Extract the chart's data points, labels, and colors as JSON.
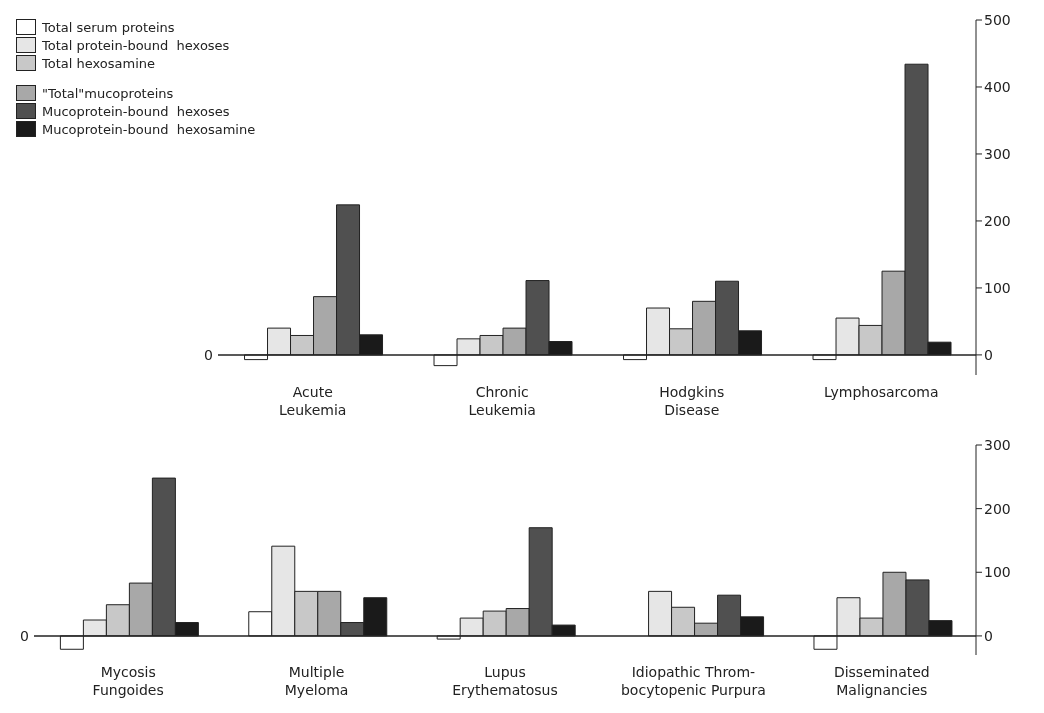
{
  "chart_data": [
    {
      "type": "bar",
      "categories": [
        "Acute\nLeukemia",
        "Chronic\nLeukemia",
        "Hodgkins\nDisease",
        "Lymphosarcoma"
      ],
      "series": [
        {
          "name": "Total serum proteins",
          "color": "#ffffff",
          "values": [
            -7,
            -16,
            -7,
            -7
          ]
        },
        {
          "name": "Total protein-bound  hexoses",
          "color": "#e6e6e6",
          "values": [
            40,
            24,
            70,
            55
          ]
        },
        {
          "name": "Total hexosamine",
          "color": "#c8c8c8",
          "values": [
            29,
            29,
            39,
            44
          ]
        },
        {
          "name": "\"Total\"mucoproteins",
          "color": "#a8a8a8",
          "values": [
            87,
            40,
            80,
            125
          ]
        },
        {
          "name": "Mucoprotein-bound  hexoses",
          "color": "#505050",
          "values": [
            224,
            111,
            110,
            434
          ]
        },
        {
          "name": "Mucoprotein-bound  hexosamine",
          "color": "#1a1a1a",
          "values": [
            30,
            20,
            36,
            19
          ]
        }
      ],
      "ylim": [
        -30,
        500
      ],
      "yticks": [
        0,
        100,
        200,
        300,
        400,
        500
      ],
      "annotations": [
        "0"
      ],
      "legend": "top left"
    },
    {
      "type": "bar",
      "categories": [
        "Mycosis\nFungoides",
        "Multiple\nMyeloma",
        "Lupus\nErythematosus",
        "Idiopathic Throm-\nbocytopenic Purpura",
        "Disseminated\nMalignancies"
      ],
      "series": [
        {
          "color": "#ffffff",
          "values": [
            -21,
            38,
            -5,
            null,
            -21
          ]
        },
        {
          "color": "#e6e6e6",
          "values": [
            25,
            141,
            28,
            70,
            60
          ]
        },
        {
          "color": "#c8c8c8",
          "values": [
            49,
            70,
            39,
            45,
            28
          ]
        },
        {
          "color": "#a8a8a8",
          "values": [
            83,
            70,
            43,
            20,
            100
          ]
        },
        {
          "color": "#505050",
          "values": [
            248,
            21,
            170,
            64,
            88
          ]
        },
        {
          "color": "#1a1a1a",
          "values": [
            21,
            60,
            17,
            30,
            24
          ]
        }
      ],
      "ylim": [
        -30,
        300
      ],
      "yticks": [
        0,
        100,
        200,
        300
      ],
      "annotations": [
        "0"
      ]
    }
  ]
}
